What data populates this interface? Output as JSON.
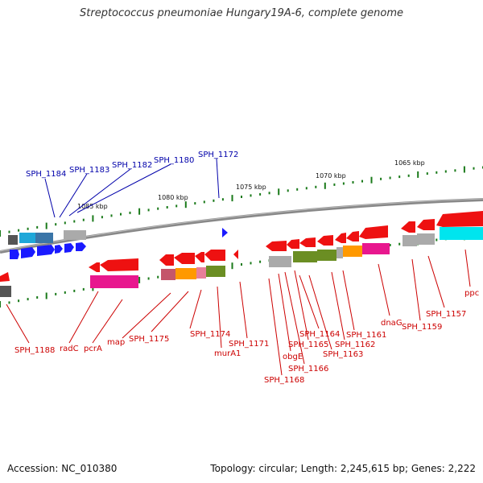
{
  "title": "Streptococcus pneumoniae Hungary19A-6, complete genome",
  "footer": {
    "accession": "Accession: NC_010380",
    "summary": "Topology: circular; Length: 2,245,615 bp; Genes: 2,222"
  },
  "scale_labels": [
    "1085 kbp",
    "1080 kbp",
    "1075 kbp",
    "1070 kbp",
    "1065 kbp"
  ],
  "top_labels": [
    "SPH_1184",
    "SPH_1183",
    "SPH_1182",
    "SPH_1180",
    "SPH_1172"
  ],
  "bottom_labels": [
    "SPH_1188",
    "radC",
    "pcrA",
    "map",
    "SPH_1175",
    "SPH_1174",
    "murA1",
    "SPH_1171",
    "SPH_1168",
    "obgE",
    "SPH_1166",
    "SPH_1165",
    "SPH_1164",
    "SPH_1163",
    "SPH_1162",
    "SPH_1161",
    "dnaG",
    "SPH_1159",
    "SPH_1157",
    "ppc"
  ],
  "colors": {
    "forward_gene": "#1a1aff",
    "reverse_gene": "#ee1111",
    "backbone": "#777777",
    "tick_major": "#1a7a1a",
    "top_label": "#0000aa",
    "bottom_label": "#cc0000"
  }
}
